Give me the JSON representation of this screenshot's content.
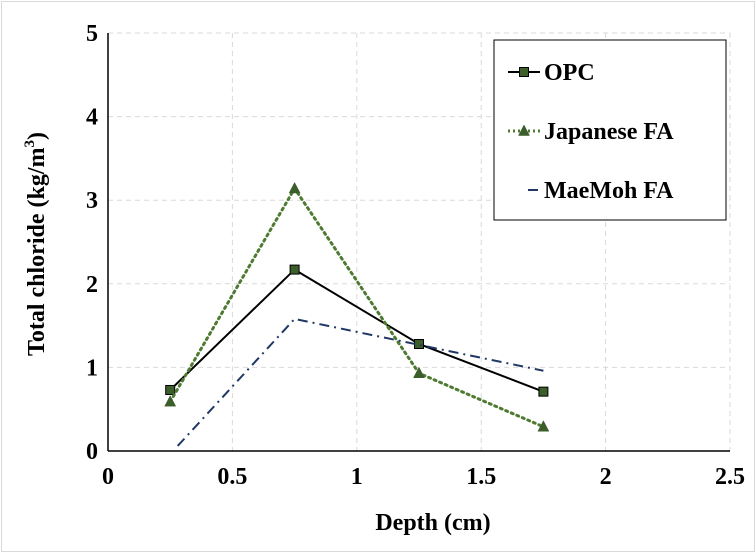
{
  "chart_data": {
    "type": "line",
    "xlabel": "Depth (cm)",
    "ylabel": "Total chloride (kg/m",
    "ylabel_sup": "3",
    "ylabel_close": ")",
    "xlim": [
      0,
      2.5
    ],
    "ylim": [
      0,
      5
    ],
    "xticks": [
      0,
      0.5,
      1,
      1.5,
      2,
      2.5
    ],
    "xtick_labels": [
      "0",
      "0.5",
      "1",
      "1.5",
      "2",
      "2.5"
    ],
    "yticks": [
      0,
      1,
      2,
      3,
      4,
      5
    ],
    "ytick_labels": [
      "0",
      "1",
      "2",
      "3",
      "4",
      "5"
    ],
    "grid": true,
    "legend_position": "top-right",
    "series": [
      {
        "name": "OPC",
        "x": [
          0.25,
          0.75,
          1.25,
          1.75
        ],
        "y": [
          0.73,
          2.17,
          1.28,
          0.71
        ],
        "color": "#000000",
        "line": "solid",
        "marker": "square",
        "marker_color": "#3b5e2b"
      },
      {
        "name": "Japanese FA",
        "x": [
          0.25,
          0.75,
          1.25,
          1.75
        ],
        "y": [
          0.59,
          3.14,
          0.93,
          0.29
        ],
        "color": "#4e7a32",
        "line": "dotted",
        "marker": "triangle",
        "marker_color": "#3b5e2b"
      },
      {
        "name": "MaeMoh FA",
        "x": [
          0.28,
          0.75,
          1.25,
          1.75
        ],
        "y": [
          0.06,
          1.58,
          1.27,
          0.96
        ],
        "color": "#1f3864",
        "line": "dashdot",
        "marker": "none",
        "marker_color": "#1f3864"
      }
    ]
  }
}
